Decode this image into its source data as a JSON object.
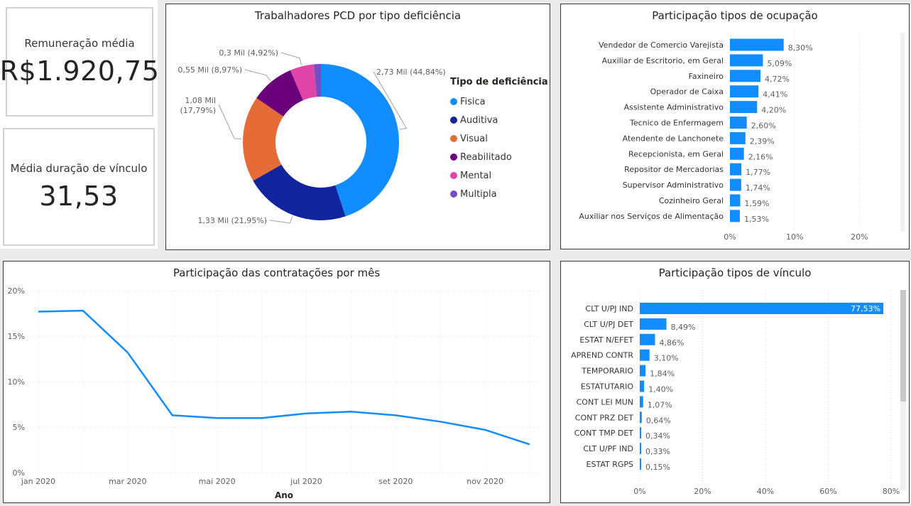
{
  "kpis": {
    "remuneracao_label": "Remuneração média",
    "remuneracao_value": "R$1.920,75",
    "duracao_label": "Média duração de vínculo",
    "duracao_value": "31,53"
  },
  "chart_data": [
    {
      "id": "deficiencia",
      "type": "pie",
      "title": "Trabalhadores PCD por tipo deficiência",
      "legend_title": "Tipo de deficiência",
      "legend_position": "right",
      "slices": [
        {
          "name": "Fisica",
          "value": 2.73,
          "percent": 44.84,
          "label": "2,73 Mil (44,84%)",
          "color": "#118DFF"
        },
        {
          "name": "Auditiva",
          "value": 1.33,
          "percent": 21.95,
          "label": "1,33 Mil (21,95%)",
          "color": "#12239E"
        },
        {
          "name": "Visual",
          "value": 1.08,
          "percent": 17.79,
          "label": "1,08 Mil (17,79%)",
          "color": "#E66C37"
        },
        {
          "name": "Reabilitado",
          "value": 0.55,
          "percent": 8.97,
          "label": "0,55 Mil (8,97%)",
          "color": "#6B007B"
        },
        {
          "name": "Mental",
          "value": 0.3,
          "percent": 4.92,
          "label": "0,3 Mil (4,92%)",
          "color": "#E044A7"
        },
        {
          "name": "Multipla",
          "value": 0.09,
          "percent": 1.53,
          "label": "",
          "color": "#744EC2"
        }
      ]
    },
    {
      "id": "ocupacao",
      "type": "bar",
      "orientation": "horizontal",
      "title": "Participação tipos de ocupação",
      "categories": [
        "Vendedor de Comercio Varejista",
        "Auxiliar de Escritorio, em Geral",
        "Faxineiro",
        "Operador de Caixa",
        "Assistente Administrativo",
        "Tecnico de Enfermagem",
        "Atendente de Lanchonete",
        "Recepcionista, em Geral",
        "Repositor de Mercadorias",
        "Supervisor Administrativo",
        "Cozinheiro Geral",
        "Auxiliar nos Serviços de Alimentação"
      ],
      "values": [
        8.3,
        5.09,
        4.72,
        4.41,
        4.2,
        2.6,
        2.39,
        2.16,
        1.77,
        1.74,
        1.59,
        1.53
      ],
      "value_labels": [
        "8,30%",
        "5,09%",
        "4,72%",
        "4,41%",
        "4,20%",
        "2,60%",
        "2,39%",
        "2,16%",
        "1,77%",
        "1,74%",
        "1,59%",
        "1,53%"
      ],
      "xlim": [
        0,
        25
      ],
      "xticks": [
        0,
        10,
        20
      ],
      "xtick_labels": [
        "0%",
        "10%",
        "20%"
      ],
      "grid": true,
      "color": "#118DFF"
    },
    {
      "id": "contratacoes",
      "type": "line",
      "title": "Participação das contratações por mês",
      "xlabel": "Ano",
      "x": [
        "jan 2020",
        "fev 2020",
        "mar 2020",
        "abr 2020",
        "mai 2020",
        "jun 2020",
        "jul 2020",
        "ago 2020",
        "set 2020",
        "out 2020",
        "nov 2020",
        "dez 2020"
      ],
      "xtick_labels": [
        "jan 2020",
        "",
        "mar 2020",
        "",
        "mai 2020",
        "",
        "jul 2020",
        "",
        "set 2020",
        "",
        "nov 2020",
        ""
      ],
      "values": [
        17.7,
        17.8,
        13.2,
        6.3,
        6.0,
        6.0,
        6.5,
        6.7,
        6.3,
        5.6,
        4.7,
        3.1
      ],
      "ylim": [
        0,
        20
      ],
      "yticks": [
        0,
        5,
        10,
        15,
        20
      ],
      "ytick_labels": [
        "0%",
        "5%",
        "10%",
        "15%",
        "20%"
      ],
      "grid": true,
      "color": "#118DFF"
    },
    {
      "id": "vinculo",
      "type": "bar",
      "orientation": "horizontal",
      "title": "Participação tipos de vínculo",
      "categories": [
        "CLT U/PJ IND",
        "CLT U/PJ DET",
        "ESTAT N/EFET",
        "APREND CONTR",
        "TEMPORARIO",
        "ESTATUTARIO",
        "CONT LEI MUN",
        "CONT PRZ DET",
        "CONT TMP DET",
        "CLT U/PF IND",
        "ESTAT RGPS"
      ],
      "values": [
        77.53,
        8.49,
        4.86,
        3.1,
        1.84,
        1.4,
        1.07,
        0.64,
        0.34,
        0.33,
        0.15
      ],
      "value_labels": [
        "77,53%",
        "8,49%",
        "4,86%",
        "3,10%",
        "1,84%",
        "1,40%",
        "1,07%",
        "0,64%",
        "0,34%",
        "0,33%",
        "0,15%"
      ],
      "xlim": [
        0,
        80
      ],
      "xticks": [
        0,
        20,
        40,
        60,
        80
      ],
      "xtick_labels": [
        "0%",
        "20%",
        "40%",
        "60%",
        "80%"
      ],
      "grid": true,
      "color": "#118DFF"
    }
  ]
}
